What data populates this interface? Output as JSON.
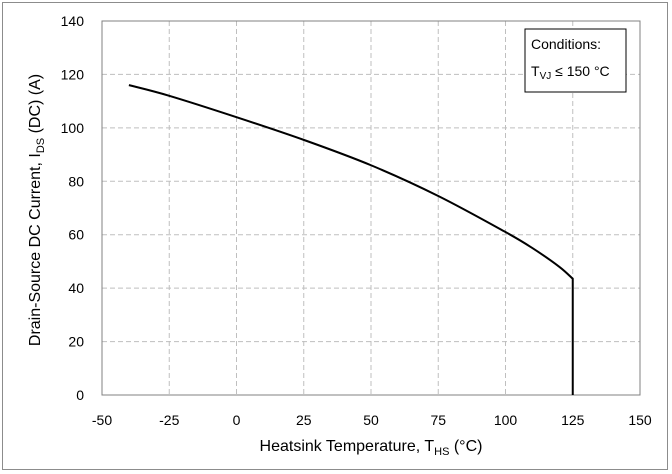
{
  "chart_data": {
    "type": "line",
    "xlabel": {
      "main": "Heatsink Temperature, T",
      "sub": "HS",
      "tail": " (°C)"
    },
    "ylabel": {
      "main": "Drain-Source DC Current, I",
      "sub": "DS",
      "tail": " (DC) (A)"
    },
    "xlim": [
      -50,
      150
    ],
    "ylim": [
      0,
      140
    ],
    "xticks": [
      "-50",
      "-25",
      "0",
      "25",
      "50",
      "75",
      "100",
      "125",
      "150"
    ],
    "yticks": [
      "0",
      "20",
      "40",
      "60",
      "80",
      "100",
      "120",
      "140"
    ],
    "grid": true,
    "legend": {
      "placement": "top-right",
      "line1": "Conditions:",
      "line2_main": "T",
      "line2_sub": "VJ",
      "line2_tail": " ≤ 150 °C"
    },
    "series": [
      {
        "x": [
          -40,
          -25,
          0,
          25,
          50,
          75,
          100,
          110,
          120,
          125,
          125
        ],
        "y": [
          116,
          112,
          104,
          95.5,
          86,
          74.5,
          61,
          55,
          48,
          43.5,
          0
        ]
      }
    ]
  }
}
